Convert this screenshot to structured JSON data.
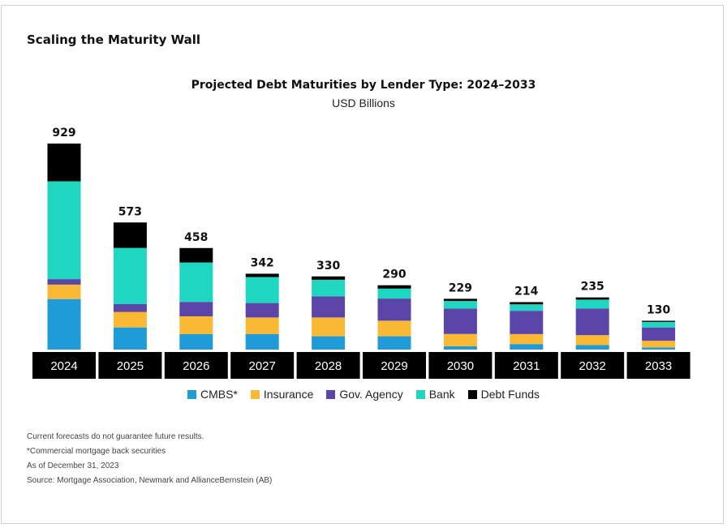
{
  "section_title": "Scaling the Maturity Wall",
  "chart_data": {
    "type": "bar",
    "stacked": true,
    "title": "Projected Debt Maturities by Lender Type: 2024–2033",
    "subtitle": "USD Billions",
    "categories": [
      "2024",
      "2025",
      "2026",
      "2027",
      "2028",
      "2029",
      "2030",
      "2031",
      "2032",
      "2033"
    ],
    "totals": [
      929,
      573,
      458,
      342,
      330,
      290,
      229,
      214,
      235,
      130
    ],
    "series": [
      {
        "name": "CMBS*",
        "color": "#1f9bd7",
        "values": [
          228,
          100,
          70,
          70,
          60,
          60,
          15,
          25,
          20,
          10
        ]
      },
      {
        "name": "Insurance",
        "color": "#f9b934",
        "values": [
          65,
          70,
          80,
          75,
          85,
          70,
          55,
          45,
          45,
          30
        ]
      },
      {
        "name": "Gov. Agency",
        "color": "#5b45a8",
        "values": [
          25,
          35,
          65,
          65,
          95,
          100,
          115,
          105,
          120,
          60
        ]
      },
      {
        "name": "Bank",
        "color": "#1fd6c1",
        "values": [
          441,
          253,
          178,
          117,
          75,
          45,
          34,
          29,
          40,
          25
        ]
      },
      {
        "name": "Debt Funds",
        "color": "#000000",
        "values": [
          170,
          115,
          65,
          15,
          15,
          15,
          10,
          10,
          10,
          5
        ]
      }
    ],
    "ylim": [
      0,
      1000
    ],
    "grid": false,
    "legend_position": "bottom"
  },
  "notes": [
    "Current forecasts do not guarantee future results.",
    "*Commercial mortgage back securities",
    "As of December 31, 2023",
    "Source: Mortgage Association, Newmark and AllianceBernstein (AB)"
  ]
}
